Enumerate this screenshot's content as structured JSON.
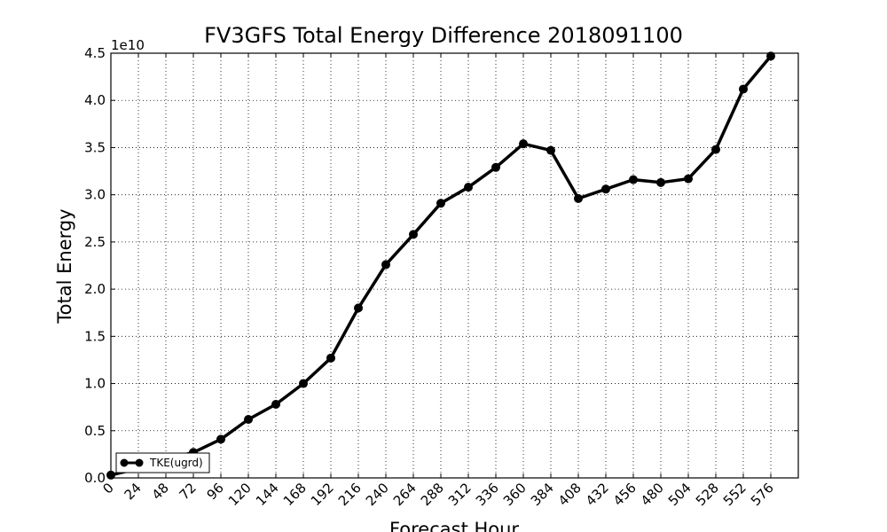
{
  "chart_data": {
    "type": "line",
    "title": "FV3GFS Total Energy Difference 2018091100",
    "xlabel": "Forecast Hour",
    "ylabel": "Total Energy",
    "y_offset_label": "1e10",
    "xlim": [
      0,
      600
    ],
    "ylim": [
      0.0,
      4.5
    ],
    "x_ticks": [
      "0",
      "24",
      "48",
      "72",
      "96",
      "120",
      "144",
      "168",
      "192",
      "216",
      "240",
      "264",
      "288",
      "312",
      "336",
      "360",
      "384",
      "408",
      "432",
      "456",
      "480",
      "504",
      "528",
      "552",
      "576"
    ],
    "y_ticks": [
      "0.0",
      "0.5",
      "1.0",
      "1.5",
      "2.0",
      "2.5",
      "3.0",
      "3.5",
      "4.0",
      "4.5"
    ],
    "grid": true,
    "legend_position": "lower-left",
    "series": [
      {
        "name": "TKE(ugrd)",
        "color": "#000000",
        "marker": "circle",
        "x": [
          0,
          24,
          48,
          72,
          96,
          120,
          144,
          168,
          192,
          216,
          240,
          264,
          288,
          312,
          336,
          360,
          384,
          408,
          432,
          456,
          480,
          504,
          528,
          552,
          576
        ],
        "y": [
          0.03,
          0.1,
          0.2,
          0.27,
          0.41,
          0.62,
          0.78,
          1.0,
          1.27,
          1.8,
          2.26,
          2.58,
          2.91,
          3.08,
          3.29,
          3.54,
          3.47,
          2.96,
          3.06,
          3.16,
          3.13,
          3.17,
          3.48,
          4.12,
          4.47
        ]
      }
    ]
  }
}
